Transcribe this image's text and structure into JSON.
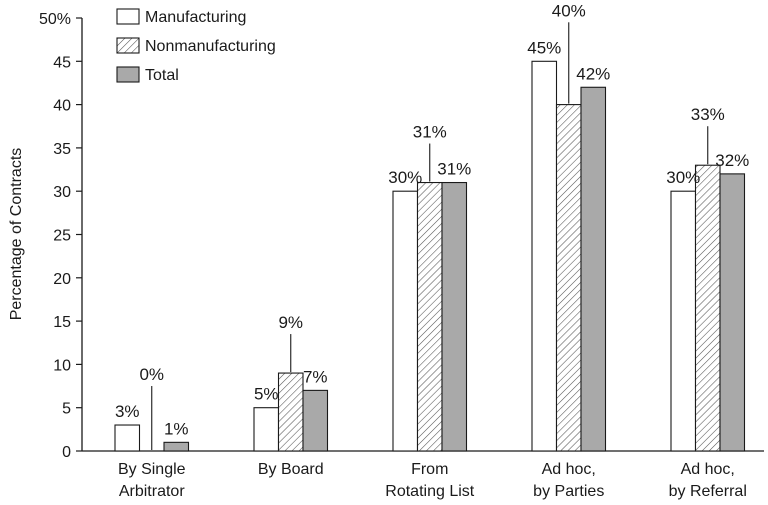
{
  "chart_data": {
    "type": "bar",
    "ylabel": "Percentage of Contracts",
    "ylim": [
      0,
      50
    ],
    "y_tick_labels": [
      "0",
      "5",
      "10",
      "15",
      "20",
      "25",
      "30",
      "35",
      "40",
      "45",
      "50%"
    ],
    "categories": [
      [
        "By Single",
        "Arbitrator"
      ],
      [
        "By Board"
      ],
      [
        "From",
        "Rotating List"
      ],
      [
        "Ad hoc,",
        "by Parties"
      ],
      [
        "Ad hoc,",
        "by Referral"
      ]
    ],
    "series": [
      {
        "name": "Manufacturing",
        "values": [
          3,
          5,
          30,
          45,
          30
        ],
        "labels": [
          "3%",
          "5%",
          "30%",
          "45%",
          "30%"
        ]
      },
      {
        "name": "Nonmanufacturing",
        "values": [
          0,
          9,
          31,
          40,
          33
        ],
        "labels": [
          "0%",
          "9%",
          "31%",
          "40%",
          "33%"
        ]
      },
      {
        "name": "Total",
        "values": [
          1,
          7,
          31,
          42,
          32
        ],
        "labels": [
          "1%",
          "7%",
          "31%",
          "42%",
          "32%"
        ]
      }
    ],
    "legend_position": "top-left",
    "grid": false
  }
}
